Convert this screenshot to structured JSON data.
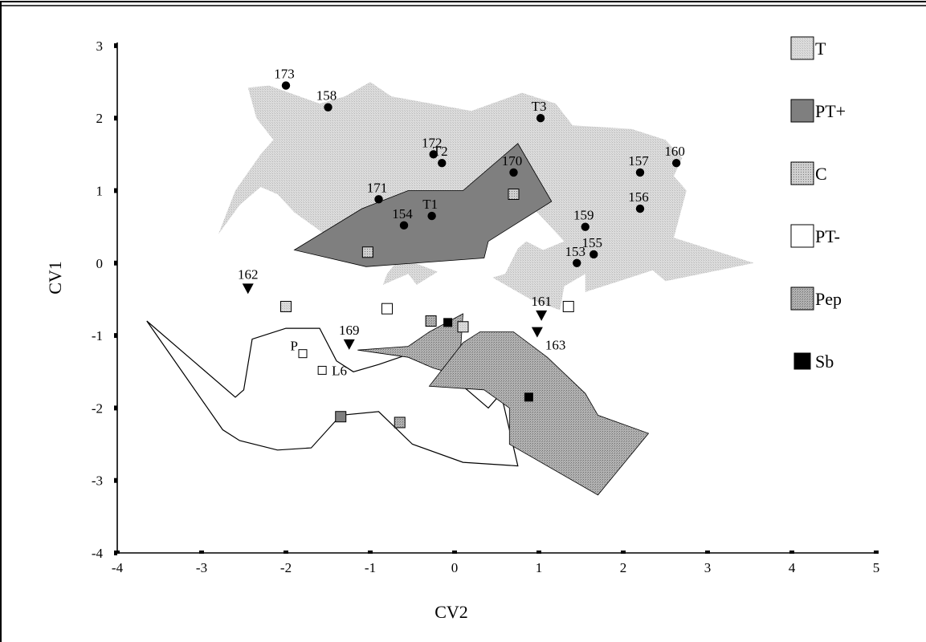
{
  "chart_data": {
    "type": "scatter",
    "title": "",
    "xlabel": "CV2",
    "ylabel": "CV1",
    "xlim": [
      -4,
      5
    ],
    "ylim": [
      -4,
      3
    ],
    "x_ticks": [
      "-4",
      "-3",
      "-2",
      "-1",
      "0",
      "1",
      "2",
      "3",
      "4",
      "5"
    ],
    "y_ticks": [
      "-4",
      "-3",
      "-2",
      "-1",
      "0",
      "1",
      "2",
      "3"
    ],
    "grid": false,
    "legend_placement": "right",
    "legend": [
      {
        "key": "T",
        "label": "T"
      },
      {
        "key": "PTplus",
        "label": "PT+"
      },
      {
        "key": "C",
        "label": "C"
      },
      {
        "key": "PTminus",
        "label": "PT-"
      },
      {
        "key": "Pep",
        "label": "Pep"
      },
      {
        "key": "Sb",
        "label": "Sb"
      }
    ],
    "colors": {
      "T": "#d9d9d9",
      "PTplus": "#7f7f7f",
      "C": "#bfbfbf",
      "PTminus": "#ffffff",
      "Pep": "#a6a6a6",
      "Sb": "#000000"
    },
    "regions": [
      {
        "group": "T",
        "polygon": [
          [
            -2.45,
            2.42
          ],
          [
            -2.2,
            2.45
          ],
          [
            -1.6,
            2.2
          ],
          [
            -1.3,
            2.3
          ],
          [
            -1.0,
            2.5
          ],
          [
            -0.75,
            2.3
          ],
          [
            0.2,
            2.1
          ],
          [
            0.8,
            2.35
          ],
          [
            1.2,
            2.2
          ],
          [
            1.4,
            1.9
          ],
          [
            2.1,
            1.85
          ],
          [
            2.5,
            1.7
          ],
          [
            2.7,
            1.45
          ],
          [
            2.6,
            1.2
          ],
          [
            2.75,
            1.0
          ],
          [
            2.6,
            0.35
          ],
          [
            3.55,
            0
          ],
          [
            2.5,
            -0.25
          ],
          [
            2.35,
            -0.1
          ],
          [
            1.55,
            -0.4
          ],
          [
            1.55,
            -0.15
          ],
          [
            1.3,
            -0.32
          ],
          [
            1.25,
            -0.65
          ],
          [
            0.9,
            -0.5
          ],
          [
            0.45,
            -0.2
          ],
          [
            0.6,
            -0.15
          ],
          [
            0.75,
            0.2
          ],
          [
            0.85,
            0.3
          ],
          [
            1.05,
            0.18
          ],
          [
            1.3,
            0.3
          ],
          [
            1.1,
            0.55
          ],
          [
            0.9,
            0.8
          ],
          [
            0.95,
            1.0
          ],
          [
            0.55,
            0.85
          ],
          [
            0.35,
            0.5
          ],
          [
            -0.55,
            0.3
          ],
          [
            -0.7,
            0.0
          ],
          [
            -0.8,
            -0.15
          ],
          [
            -0.85,
            -0.3
          ],
          [
            -0.55,
            -0.15
          ],
          [
            -0.45,
            -0.3
          ],
          [
            -0.2,
            -0.12
          ],
          [
            -0.8,
            0.15
          ],
          [
            -1.35,
            0.2
          ],
          [
            -1.6,
            0.45
          ],
          [
            -1.9,
            0.7
          ],
          [
            -2.1,
            0.95
          ],
          [
            -2.3,
            1.05
          ],
          [
            -2.55,
            0.8
          ],
          [
            -2.8,
            0.4
          ],
          [
            -2.6,
            1.0
          ],
          [
            -2.3,
            1.5
          ],
          [
            -2.15,
            1.7
          ],
          [
            -2.35,
            2.0
          ]
        ]
      },
      {
        "group": "PTplus",
        "polygon": [
          [
            -1.9,
            0.18
          ],
          [
            -1.1,
            0.75
          ],
          [
            -0.55,
            1.0
          ],
          [
            0.1,
            1.0
          ],
          [
            0.75,
            1.65
          ],
          [
            1.15,
            0.85
          ],
          [
            0.4,
            0.3
          ],
          [
            0.35,
            0.07
          ],
          [
            -1.05,
            -0.05
          ]
        ]
      },
      {
        "group": "PTminus",
        "polygon": [
          [
            -3.65,
            -0.8
          ],
          [
            -3.1,
            -1.35
          ],
          [
            -2.6,
            -1.85
          ],
          [
            -2.5,
            -1.75
          ],
          [
            -2.4,
            -1.05
          ],
          [
            -2.0,
            -0.9
          ],
          [
            -1.6,
            -0.9
          ],
          [
            -1.4,
            -1.35
          ],
          [
            -1.2,
            -1.5
          ],
          [
            -0.9,
            -1.4
          ],
          [
            -0.4,
            -1.2
          ],
          [
            -0.35,
            -1.4
          ],
          [
            -0.1,
            -1.5
          ],
          [
            0.4,
            -2.0
          ],
          [
            0.55,
            -1.8
          ],
          [
            0.75,
            -2.8
          ],
          [
            0.1,
            -2.75
          ],
          [
            -0.5,
            -2.5
          ],
          [
            -0.9,
            -2.05
          ],
          [
            -1.35,
            -2.1
          ],
          [
            -1.7,
            -2.55
          ],
          [
            -2.1,
            -2.58
          ],
          [
            -2.55,
            -2.45
          ],
          [
            -2.75,
            -2.3
          ]
        ]
      },
      {
        "group": "Pep",
        "polygon": [
          [
            -1.15,
            -1.2
          ],
          [
            -0.55,
            -1.15
          ],
          [
            -0.3,
            -0.95
          ],
          [
            0.1,
            -0.7
          ],
          [
            0.05,
            -1.55
          ],
          [
            -0.25,
            -1.45
          ],
          [
            -0.55,
            -1.3
          ]
        ]
      },
      {
        "group": "Pep",
        "polygon": [
          [
            0.3,
            -0.95
          ],
          [
            0.7,
            -0.95
          ],
          [
            1.1,
            -1.3
          ],
          [
            1.55,
            -1.8
          ],
          [
            1.7,
            -2.1
          ],
          [
            2.3,
            -2.35
          ],
          [
            1.7,
            -3.2
          ],
          [
            0.65,
            -2.5
          ],
          [
            0.65,
            -2.0
          ],
          [
            0.35,
            -1.75
          ],
          [
            -0.3,
            -1.7
          ],
          [
            0.1,
            -1.1
          ]
        ]
      }
    ],
    "points": [
      {
        "label": "173",
        "x": -2.0,
        "y": 2.45,
        "group": "T",
        "marker": "circle"
      },
      {
        "label": "158",
        "x": -1.5,
        "y": 2.15,
        "group": "T",
        "marker": "circle"
      },
      {
        "label": "T3",
        "x": 1.02,
        "y": 2.0,
        "group": "T",
        "marker": "circle"
      },
      {
        "label": "172",
        "x": -0.25,
        "y": 1.5,
        "group": "T",
        "marker": "circle"
      },
      {
        "label": "T2",
        "x": -0.15,
        "y": 1.38,
        "group": "T",
        "marker": "circle"
      },
      {
        "label": "170",
        "x": 0.7,
        "y": 1.25,
        "group": "T",
        "marker": "circle"
      },
      {
        "label": "157",
        "x": 2.2,
        "y": 1.25,
        "group": "T",
        "marker": "circle"
      },
      {
        "label": "160",
        "x": 2.63,
        "y": 1.38,
        "group": "T",
        "marker": "circle"
      },
      {
        "label": "171",
        "x": -0.9,
        "y": 0.88,
        "group": "T",
        "marker": "circle"
      },
      {
        "label": "156",
        "x": 2.2,
        "y": 0.75,
        "group": "T",
        "marker": "circle"
      },
      {
        "label": "T1",
        "x": -0.27,
        "y": 0.65,
        "group": "T",
        "marker": "circle"
      },
      {
        "label": "154",
        "x": -0.6,
        "y": 0.52,
        "group": "T",
        "marker": "circle"
      },
      {
        "label": "159",
        "x": 1.55,
        "y": 0.5,
        "group": "T",
        "marker": "circle"
      },
      {
        "label": "155",
        "x": 1.65,
        "y": 0.12,
        "group": "T",
        "marker": "circle"
      },
      {
        "label": "153",
        "x": 1.45,
        "y": 0.0,
        "group": "T",
        "marker": "circle"
      },
      {
        "label": "162",
        "x": -2.45,
        "y": -0.35,
        "group": "",
        "marker": "triangle"
      },
      {
        "label": "161",
        "x": 1.03,
        "y": -0.72,
        "group": "",
        "marker": "triangle"
      },
      {
        "label": "163",
        "x": 0.98,
        "y": -0.95,
        "group": "",
        "marker": "triangle"
      },
      {
        "label": "169",
        "x": -1.25,
        "y": -1.12,
        "group": "",
        "marker": "triangle"
      },
      {
        "label": "",
        "x": 0.7,
        "y": 0.95,
        "group": "C",
        "marker": "square"
      },
      {
        "label": "",
        "x": -1.03,
        "y": 0.15,
        "group": "C",
        "marker": "square"
      },
      {
        "label": "",
        "x": -2.0,
        "y": -0.6,
        "group": "T",
        "marker": "square"
      },
      {
        "label": "",
        "x": -0.8,
        "y": -0.63,
        "group": "PTminus",
        "marker": "square"
      },
      {
        "label": "",
        "x": 1.35,
        "y": -0.6,
        "group": "PTminus",
        "marker": "square"
      },
      {
        "label": "",
        "x": -0.28,
        "y": -0.8,
        "group": "Pep",
        "marker": "square"
      },
      {
        "label": "",
        "x": -0.08,
        "y": -0.82,
        "group": "Sb",
        "marker": "square-small"
      },
      {
        "label": "",
        "x": 0.1,
        "y": -0.88,
        "group": "T",
        "marker": "square"
      },
      {
        "label": "P",
        "x": -1.8,
        "y": -1.25,
        "group": "PTminus",
        "marker": "square-small"
      },
      {
        "label": "L6",
        "x": -1.57,
        "y": -1.48,
        "group": "PTminus",
        "marker": "square-small"
      },
      {
        "label": "",
        "x": 0.88,
        "y": -1.85,
        "group": "Sb",
        "marker": "square-small"
      },
      {
        "label": "",
        "x": -1.35,
        "y": -2.12,
        "group": "PTplus",
        "marker": "square"
      },
      {
        "label": "",
        "x": -0.65,
        "y": -2.2,
        "group": "Pep",
        "marker": "square"
      }
    ]
  }
}
